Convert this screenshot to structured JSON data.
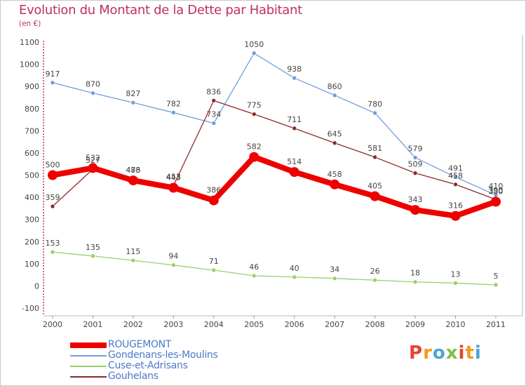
{
  "page": {
    "title": "Evolution du Montant de la Dette par Habitant",
    "unit": "(en €)"
  },
  "logo": {
    "text": "Proxiti",
    "letter_colors": [
      "#e8422e",
      "#f29a1f",
      "#4aa4d8",
      "#7cc142",
      "#e8422e",
      "#f29a1f",
      "#4aa4d8"
    ]
  },
  "chart_data": {
    "type": "line",
    "title": "Evolution du Montant de la Dette par Habitant",
    "ylabel": "(en €)",
    "xlabel": "",
    "x": [
      "2000",
      "2001",
      "2002",
      "2003",
      "2004",
      "2005",
      "2006",
      "2007",
      "2008",
      "2009",
      "2010",
      "2011"
    ],
    "ylim": [
      -100,
      1100
    ],
    "yticks": [
      -100,
      0,
      100,
      200,
      300,
      400,
      500,
      600,
      700,
      800,
      900,
      1000,
      1100
    ],
    "grid": false,
    "legend": "bottom-left",
    "series": [
      {
        "name": "ROUGEMONT",
        "color": "#ee0000",
        "values": [
          500,
          532,
          476,
          443,
          386,
          582,
          514,
          458,
          405,
          343,
          316,
          380
        ]
      },
      {
        "name": "Gondenans-les-Moulins",
        "color": "#6f9fd8",
        "values": [
          917,
          870,
          827,
          782,
          734,
          1050,
          938,
          860,
          780,
          579,
          491,
          410
        ]
      },
      {
        "name": "Cuse-et-Adrisans",
        "color": "#9ad068",
        "values": [
          153,
          135,
          115,
          94,
          71,
          46,
          40,
          34,
          26,
          18,
          13,
          5
        ]
      },
      {
        "name": "Gouhelans",
        "color": "#8b2a2a",
        "values": [
          359,
          527,
          483,
          453,
          836,
          775,
          711,
          645,
          581,
          509,
          458,
          390
        ]
      }
    ]
  }
}
